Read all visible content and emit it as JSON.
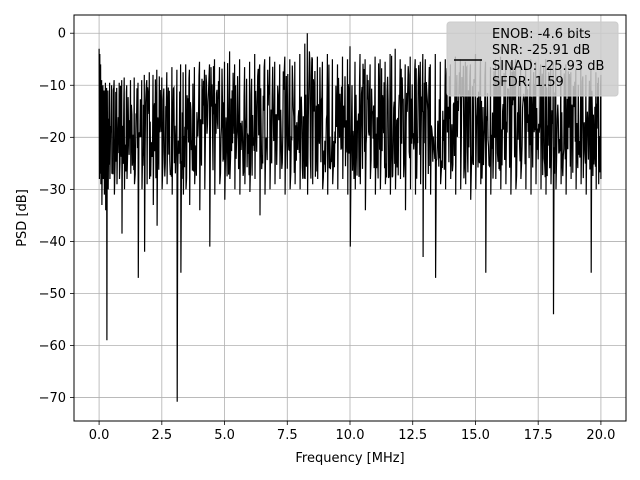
{
  "chart_data": {
    "type": "line",
    "title": "",
    "xlabel": "Frequency [MHz]",
    "ylabel": "PSD [dB]",
    "xlim": [
      -1.0,
      21.0
    ],
    "ylim": [
      -74.5,
      3.5
    ],
    "xticks": [
      0.0,
      2.5,
      5.0,
      7.5,
      10.0,
      12.5,
      15.0,
      17.5,
      20.0
    ],
    "xtick_labels": [
      "0.0",
      "2.5",
      "5.0",
      "7.5",
      "10.0",
      "12.5",
      "15.0",
      "17.5",
      "20.0"
    ],
    "yticks": [
      0,
      -10,
      -20,
      -30,
      -40,
      -50,
      -60,
      -70
    ],
    "ytick_labels": [
      "0",
      "−10",
      "−20",
      "−30",
      "−40",
      "−50",
      "−60",
      "−70"
    ],
    "grid": true,
    "line_color": "#000000",
    "legend": {
      "placement": "top-right",
      "entries": [
        "ENOB: -4.6 bits",
        "SNR: -25.91 dB",
        "SINAD: -25.93 dB",
        "SFDR: 1.59"
      ]
    },
    "series": [
      {
        "x": [
          0.0,
          0.03,
          0.06,
          0.1,
          0.15,
          0.2,
          0.25,
          0.3,
          0.35,
          0.42,
          0.5,
          0.6,
          0.7,
          0.8,
          0.9,
          1.0,
          1.1,
          1.25,
          1.4,
          1.55,
          1.7,
          1.8,
          1.9,
          2.0,
          2.15,
          2.3,
          2.5,
          2.7,
          2.9,
          3.1,
          3.25,
          3.35,
          3.45,
          3.6,
          3.8,
          4.0,
          4.2,
          4.4,
          4.6,
          4.8,
          5.0,
          5.2,
          5.4,
          5.6,
          5.8,
          6.0,
          6.2,
          6.4,
          6.6,
          6.8,
          7.0,
          7.2,
          7.4,
          7.6,
          7.8,
          8.0,
          8.2,
          8.3,
          8.5,
          8.7,
          8.9,
          9.1,
          9.3,
          9.5,
          9.7,
          9.9,
          10.0,
          10.2,
          10.4,
          10.6,
          10.8,
          11.0,
          11.2,
          11.4,
          11.6,
          11.8,
          12.0,
          12.2,
          12.4,
          12.6,
          12.8,
          12.9,
          13.0,
          13.2,
          13.4,
          13.6,
          13.8,
          14.0,
          14.2,
          14.4,
          14.6,
          14.8,
          15.0,
          15.2,
          15.4,
          15.6,
          15.8,
          16.0,
          16.2,
          16.4,
          16.6,
          16.8,
          17.0,
          17.2,
          17.4,
          17.6,
          17.8,
          18.0,
          18.1,
          18.2,
          18.4,
          18.6,
          18.8,
          19.0,
          19.2,
          19.4,
          19.6,
          19.8,
          19.9,
          20.0
        ],
        "high": [
          -3.0,
          -4.0,
          -6.0,
          -9.0,
          -10.0,
          -11.0,
          -9.5,
          -10.5,
          -11.0,
          -9.5,
          -10.0,
          -9.0,
          -10.5,
          -9.5,
          -9.0,
          -8.5,
          -10.0,
          -9.0,
          -8.5,
          -9.5,
          -9.0,
          -8.0,
          -9.0,
          -7.5,
          -8.0,
          -7.0,
          -8.5,
          -7.5,
          -6.5,
          -7.0,
          -6.0,
          -7.5,
          -6.0,
          -7.0,
          -6.5,
          -5.5,
          -7.0,
          -6.0,
          -5.0,
          -6.5,
          -5.5,
          -3.5,
          -6.0,
          -5.0,
          -6.5,
          -5.5,
          -4.0,
          -6.0,
          -5.0,
          -4.5,
          -5.5,
          -6.0,
          -4.5,
          -5.0,
          -5.5,
          -4.0,
          -2.0,
          0.0,
          -5.0,
          -4.5,
          -5.5,
          -4.0,
          -5.0,
          -6.0,
          -4.5,
          -5.0,
          -2.5,
          -5.5,
          -4.0,
          -5.0,
          -6.0,
          -4.5,
          -5.0,
          -5.5,
          -4.0,
          -3.0,
          -5.0,
          -6.0,
          -4.5,
          -5.0,
          -5.5,
          -4.0,
          -5.0,
          -6.0,
          -4.0,
          -5.5,
          -5.0,
          -6.0,
          -4.5,
          -5.0,
          -5.5,
          -6.0,
          -4.0,
          -5.0,
          -5.5,
          -6.5,
          -5.0,
          -4.5,
          -6.0,
          -5.5,
          -5.0,
          -6.0,
          -6.5,
          -5.0,
          -5.5,
          -6.0,
          -5.0,
          -6.5,
          -5.5,
          -6.0,
          -7.0,
          -6.0,
          -7.5,
          -7.0,
          -6.5,
          -8.0,
          -7.0,
          -7.5,
          -8.5,
          -8.0
        ],
        "low": [
          -28.0,
          -27.0,
          -29.0,
          -33.0,
          -28.0,
          -31.0,
          -34.0,
          -59.0,
          -30.0,
          -28.0,
          -27.0,
          -31.0,
          -29.0,
          -28.0,
          -38.5,
          -30.0,
          -28.0,
          -27.0,
          -29.0,
          -47.0,
          -30.0,
          -42.0,
          -29.0,
          -28.0,
          -33.0,
          -37.0,
          -30.0,
          -29.0,
          -31.0,
          -70.8,
          -46.0,
          -31.0,
          -30.0,
          -33.0,
          -29.0,
          -34.0,
          -30.0,
          -41.0,
          -31.0,
          -29.0,
          -32.0,
          -28.0,
          -30.0,
          -31.0,
          -29.0,
          -30.5,
          -28.0,
          -35.0,
          -31.0,
          -30.0,
          -29.0,
          -28.0,
          -31.0,
          -30.0,
          -29.0,
          -30.0,
          -28.0,
          -31.0,
          -29.0,
          -28.0,
          -30.0,
          -31.0,
          -29.0,
          -30.0,
          -28.0,
          -31.0,
          -41.0,
          -30.0,
          -29.0,
          -34.0,
          -28.0,
          -31.0,
          -30.0,
          -29.0,
          -31.0,
          -30.0,
          -28.0,
          -34.0,
          -30.0,
          -31.0,
          -29.0,
          -43.0,
          -30.0,
          -31.0,
          -47.0,
          -29.0,
          -30.0,
          -28.0,
          -31.0,
          -30.0,
          -29.0,
          -32.0,
          -30.0,
          -29.0,
          -46.0,
          -31.0,
          -28.0,
          -30.0,
          -29.0,
          -31.0,
          -30.0,
          -28.0,
          -30.0,
          -31.0,
          -29.0,
          -30.0,
          -31.0,
          -29.0,
          -54.0,
          -30.0,
          -29.0,
          -31.0,
          -28.0,
          -30.0,
          -29.0,
          -31.0,
          -46.0,
          -30.0,
          -29.0,
          -28.0
        ]
      }
    ]
  }
}
